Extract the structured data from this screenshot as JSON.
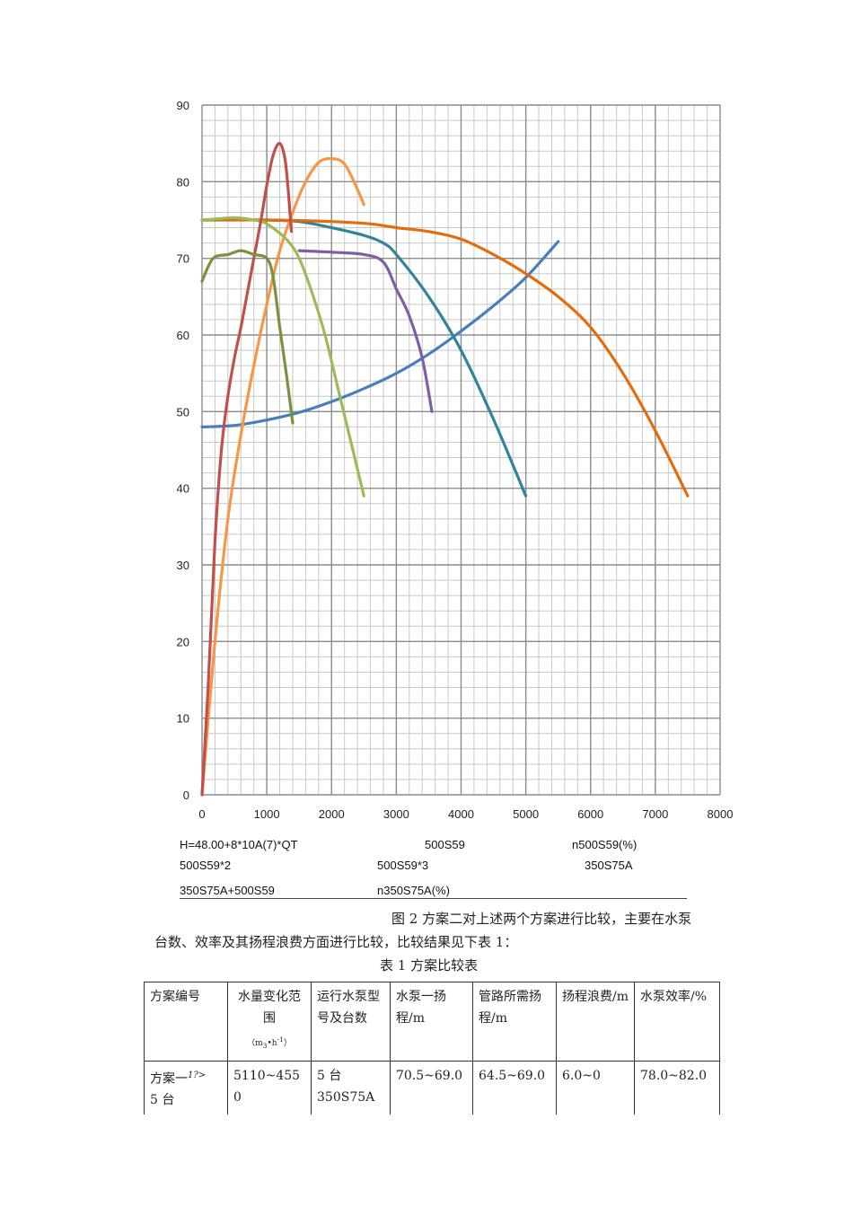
{
  "chart_data": {
    "type": "line",
    "xlim": [
      0,
      8000
    ],
    "ylim": [
      0,
      90
    ],
    "x_ticks": [
      "0",
      "1000",
      "2000",
      "3000",
      "4000",
      "5000",
      "6000",
      "7000",
      "8000"
    ],
    "y_ticks": [
      "0",
      "10",
      "20",
      "30",
      "40",
      "50",
      "60",
      "70",
      "80",
      "90"
    ],
    "grid": true,
    "legend_position": "bottom",
    "series": [
      {
        "name": "H=48.00+8*10A(7)*QT",
        "color": "#4a7ebb",
        "points": [
          [
            0,
            48
          ],
          [
            500,
            48.2
          ],
          [
            1000,
            48.9
          ],
          [
            1500,
            49.9
          ],
          [
            2000,
            51.3
          ],
          [
            2500,
            53
          ],
          [
            3000,
            55
          ],
          [
            3500,
            57.5
          ],
          [
            4000,
            60.5
          ],
          [
            4500,
            63.8
          ],
          [
            5000,
            67.5
          ],
          [
            5500,
            72.2
          ]
        ]
      },
      {
        "name": "500S59",
        "color": "#31849b",
        "points": [
          [
            0,
            75
          ],
          [
            500,
            75
          ],
          [
            1000,
            75
          ],
          [
            1500,
            74.8
          ],
          [
            2000,
            74
          ],
          [
            2500,
            73
          ],
          [
            2800,
            72
          ],
          [
            3000,
            70.5
          ],
          [
            3500,
            65
          ],
          [
            4000,
            58
          ],
          [
            4500,
            49
          ],
          [
            5000,
            39
          ]
        ]
      },
      {
        "name": "n500S59(%)",
        "color": "#f79646",
        "points": [
          [
            0,
            0
          ],
          [
            200,
            20
          ],
          [
            400,
            36
          ],
          [
            600,
            47
          ],
          [
            800,
            56
          ],
          [
            1000,
            64
          ],
          [
            1200,
            71
          ],
          [
            1400,
            76
          ],
          [
            1600,
            80
          ],
          [
            1800,
            82.5
          ],
          [
            2000,
            83
          ],
          [
            2200,
            82.3
          ],
          [
            2400,
            79
          ],
          [
            2500,
            77
          ]
        ]
      },
      {
        "name": "500S59*2",
        "color": "#e46c0a",
        "points": [
          [
            0,
            75
          ],
          [
            1000,
            75
          ],
          [
            2000,
            74.8
          ],
          [
            2600,
            74.5
          ],
          [
            3000,
            74
          ],
          [
            3500,
            73.5
          ],
          [
            4000,
            72.5
          ],
          [
            4500,
            70.5
          ],
          [
            5000,
            68
          ],
          [
            5500,
            65
          ],
          [
            6000,
            61
          ],
          [
            6500,
            55
          ],
          [
            7000,
            47.5
          ],
          [
            7500,
            39
          ]
        ]
      },
      {
        "name": "500S59*3",
        "color": "#7f5fa3",
        "points": [
          [
            1500,
            71
          ],
          [
            2000,
            70.8
          ],
          [
            2500,
            70.5
          ],
          [
            2800,
            69.5
          ],
          [
            3000,
            66
          ],
          [
            3200,
            62.5
          ],
          [
            3400,
            57
          ],
          [
            3550,
            50
          ]
        ]
      },
      {
        "name": "350S75A",
        "color": "#9bbb59",
        "points": [
          [
            0,
            75
          ],
          [
            300,
            75.2
          ],
          [
            500,
            75.3
          ],
          [
            800,
            75
          ],
          [
            1000,
            74.5
          ],
          [
            1300,
            72.5
          ],
          [
            1500,
            70
          ],
          [
            1700,
            65.5
          ],
          [
            1900,
            60
          ],
          [
            2100,
            53
          ],
          [
            2300,
            46
          ],
          [
            2500,
            39
          ]
        ]
      },
      {
        "name": "350S75A+500S59",
        "color": "#c0504d",
        "points": [
          [
            0,
            0
          ],
          [
            100,
            15
          ],
          [
            200,
            33
          ],
          [
            300,
            45
          ],
          [
            400,
            52
          ],
          [
            500,
            57
          ],
          [
            600,
            61
          ],
          [
            700,
            65.5
          ],
          [
            800,
            70
          ],
          [
            900,
            74.5
          ],
          [
            1000,
            79.5
          ],
          [
            1100,
            83.5
          ],
          [
            1200,
            85
          ],
          [
            1280,
            83
          ],
          [
            1330,
            79
          ],
          [
            1380,
            73.5
          ]
        ]
      },
      {
        "name": "n350S75A(%)",
        "color": "#77933c",
        "points": [
          [
            0,
            67
          ],
          [
            100,
            69
          ],
          [
            200,
            70.2
          ],
          [
            400,
            70.5
          ],
          [
            600,
            71
          ],
          [
            800,
            70.5
          ],
          [
            1000,
            70
          ],
          [
            1100,
            67.5
          ],
          [
            1200,
            61
          ],
          [
            1300,
            55
          ],
          [
            1400,
            48.5
          ]
        ]
      }
    ]
  },
  "legend_labels": [
    "H=48.00+8*10A(7)*QT",
    "500S59",
    "n500S59(%)",
    "500S59*2",
    "500S59*3",
    "350S75A",
    "350S75A+500S59",
    "n350S75A(%)"
  ],
  "text": {
    "para_line1": "图 2 方案二对上述两个方案进行比较，主要在水泵",
    "para_line2": "台数、效率及其扬程浪费方面进行比较，比较结果见下表 1：",
    "table_title": "表 1 方案比较表"
  },
  "table": {
    "headers": {
      "h1": "方案编号",
      "h2": "水量变化范围",
      "h2_unit_a": "（m",
      "h2_unit_b": "•h",
      "h2_unit_c": "）",
      "h3": "运行水泵型号及台数",
      "h4": "水泵一扬程/m",
      "h5": "管路所需扬程/m",
      "h6": "扬程浪费/m",
      "h7": "水泵效率/%"
    },
    "row1": {
      "c1": "方案一",
      "c1_mark": "1?>",
      "c1b": "5 台",
      "c2": "5110~4550",
      "c3a": "5 台",
      "c3b": "350S75A",
      "c4": "70.5~69.0",
      "c5": "64.5~69.0",
      "c6": "6.0~0",
      "c7": "78.0~82.0"
    }
  }
}
